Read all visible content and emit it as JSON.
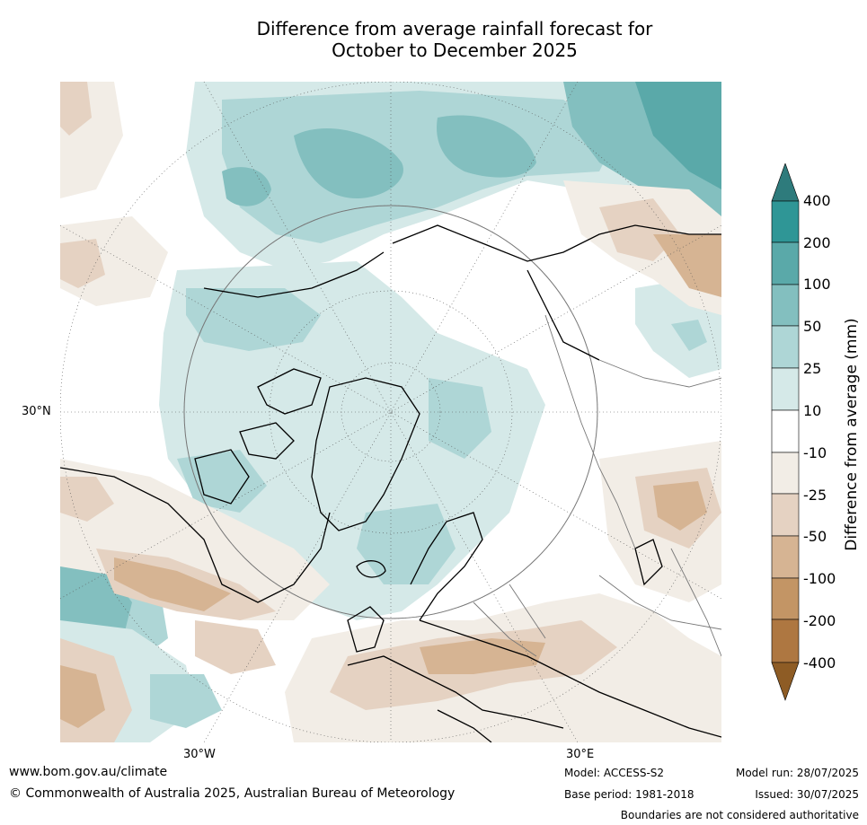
{
  "title": {
    "line1": "Difference from average rainfall forecast for",
    "line2": "October to December 2025"
  },
  "map": {
    "projection": "north-polar stereographic",
    "lat_labels": [
      "30°N"
    ],
    "lon_labels": [
      "30°W",
      "30°E"
    ]
  },
  "colorbar": {
    "label": "Difference from average (mm)",
    "ticks": [
      "400",
      "200",
      "100",
      "50",
      "25",
      "10",
      "-10",
      "-25",
      "-50",
      "-100",
      "-200",
      "-400"
    ],
    "colors": {
      "gt400": "#2e7b7c",
      "200_400": "#2f9696",
      "100_200": "#5aa9a9",
      "50_100": "#83bfbf",
      "25_50": "#aed6d6",
      "10_25": "#d5e9e8",
      "-10_10": "#ffffff",
      "-25_-10": "#f2ede6",
      "-50_-25": "#e5d2c2",
      "-100_-50": "#d6b493",
      "-200_-100": "#c39565",
      "-400_-200": "#ae7741",
      "lt-400": "#8e5c25"
    }
  },
  "footer": {
    "website": "www.bom.gov.au/climate",
    "copyright": "© Commonwealth of Australia 2025, Australian Bureau of Meteorology",
    "model": "Model: ACCESS-S2",
    "base_period": "Base period: 1981-2018",
    "model_run": "Model run: 28/07/2025",
    "issued": "Issued: 30/07/2025",
    "disclaimer": "Boundaries are not considered authoritative"
  }
}
